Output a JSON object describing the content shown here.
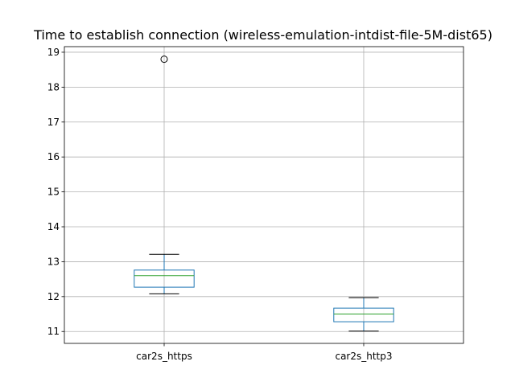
{
  "chart_data": {
    "type": "box",
    "title": "Time to establish connection (wireless-emulation-intdist-file-5M-dist65)",
    "xlabel": "",
    "ylabel": "",
    "categories": [
      "car2s_https",
      "car2s_http3"
    ],
    "boxes": [
      {
        "category": "car2s_https",
        "whisker_low": 12.08,
        "q1": 12.27,
        "median": 12.6,
        "q3": 12.76,
        "whisker_high": 13.21,
        "fliers": [
          18.8
        ]
      },
      {
        "category": "car2s_http3",
        "whisker_low": 11.01,
        "q1": 11.28,
        "median": 11.5,
        "q3": 11.67,
        "whisker_high": 11.97,
        "fliers": []
      }
    ],
    "ylim": [
      10.66,
      19.16
    ],
    "yticks": [
      11,
      12,
      13,
      14,
      15,
      16,
      17,
      18,
      19
    ],
    "grid": true,
    "legend": false
  }
}
